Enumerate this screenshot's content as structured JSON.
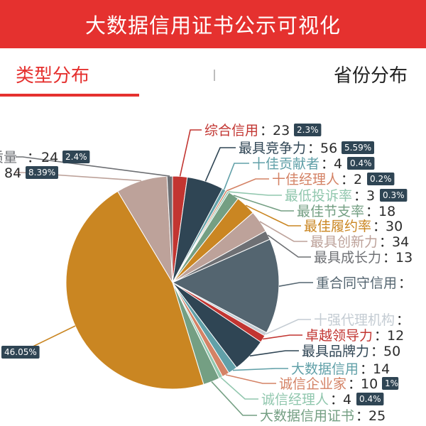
{
  "header": {
    "title": "大数据信用证书公示可视化",
    "color": "#e5312f"
  },
  "tabs": [
    {
      "label": "类型分布",
      "active": true
    },
    {
      "label": "省份分布",
      "active": false
    }
  ],
  "chart_data": {
    "type": "pie",
    "title": "",
    "slices": [
      {
        "name": "综合信用",
        "value": 23,
        "percent": "2.3%",
        "color": "#c23531"
      },
      {
        "name": "最具竞争力",
        "value": 56,
        "percent": "5.59%",
        "color": "#2f4554"
      },
      {
        "name": "十佳贡献者",
        "value": 4,
        "percent": "0.4%",
        "color": "#61a0a8"
      },
      {
        "name": "十佳经理人",
        "value": 2,
        "percent": "0.2%",
        "color": "#d48265"
      },
      {
        "name": "最低投诉率",
        "value": 3,
        "percent": "0.3%",
        "color": "#91c7ae"
      },
      {
        "name": "最佳节支率",
        "value": 18,
        "percent": "",
        "color": "#749f83"
      },
      {
        "name": "最佳履约率",
        "value": 30,
        "percent": "",
        "color": "#ca8622"
      },
      {
        "name": "最具创新力",
        "value": 34,
        "percent": "",
        "color": "#bda29a"
      },
      {
        "name": "最具成长力",
        "value": 13,
        "percent": "",
        "color": "#6e7074"
      },
      {
        "name": "重合同守信用",
        "value": null,
        "percent": "",
        "color": "#546570"
      },
      {
        "name": "十强代理机构",
        "value": null,
        "percent": "",
        "color": "#c4ccd3"
      },
      {
        "name": "卓越领导力",
        "value": 12,
        "percent": "",
        "color": "#c23531"
      },
      {
        "name": "最具品牌力",
        "value": 50,
        "percent": "",
        "color": "#2f4554"
      },
      {
        "name": "大数据信用",
        "value": 14,
        "percent": "",
        "color": "#61a0a8"
      },
      {
        "name": "诚信企业家",
        "value": 10,
        "percent": "1%",
        "color": "#d48265"
      },
      {
        "name": "诚信经理人",
        "value": 4,
        "percent": "0.4%",
        "color": "#91c7ae"
      },
      {
        "name": "大数据信用证书",
        "value": 25,
        "percent": "",
        "color": "#749f83"
      },
      {
        "name": "",
        "value": null,
        "percent": "46.05%",
        "color": "#ca8622"
      },
      {
        "name": "",
        "value": 84,
        "percent": "8.39%",
        "color": "#bda29a"
      },
      {
        "name": "质量",
        "value": 24,
        "percent": "2.4%",
        "color": "#6e7074"
      }
    ]
  }
}
